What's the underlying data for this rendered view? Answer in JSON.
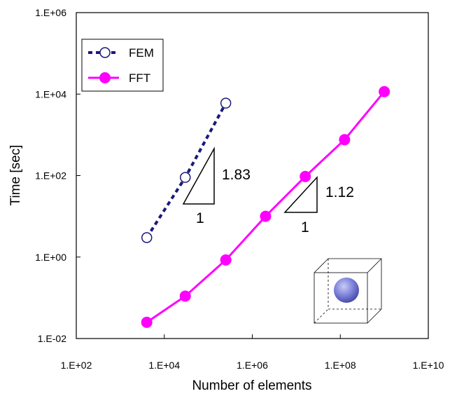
{
  "chart_data": {
    "type": "scatter",
    "xlabel": "Number of elements",
    "ylabel": "Time [sec]",
    "xscale": "log",
    "yscale": "log",
    "xlim": [
      100,
      10000000000
    ],
    "ylim": [
      0.01,
      1000000
    ],
    "x_ticks": [
      100,
      10000,
      1000000,
      100000000,
      10000000000
    ],
    "x_tick_labels": [
      "1.E+02",
      "1.E+04",
      "1.E+06",
      "1.E+08",
      "1.E+10"
    ],
    "y_ticks": [
      0.01,
      1,
      100,
      10000,
      1000000
    ],
    "y_tick_labels": [
      "1.E-02",
      "1.E+00",
      "1.E+02",
      "1.E+04",
      "1.E+06"
    ],
    "grid": false,
    "legend_position": "top-left",
    "series": [
      {
        "name": "FEM",
        "style": "dotted-line-open-circles",
        "color": "#1a1a7a",
        "x": [
          4000,
          30000,
          250000
        ],
        "y": [
          3,
          90,
          6000
        ]
      },
      {
        "name": "FFT",
        "style": "solid-line-filled-circles",
        "color": "#ff00ff",
        "x": [
          4000,
          30000,
          250000,
          2000000,
          16000000,
          125000000,
          1000000000
        ],
        "y": [
          0.025,
          0.11,
          0.85,
          10,
          95,
          760,
          11500
        ]
      }
    ],
    "annotations": [
      {
        "label_slope": "1.83",
        "label_run": "1"
      },
      {
        "label_slope": "1.12",
        "label_run": "1"
      }
    ]
  }
}
